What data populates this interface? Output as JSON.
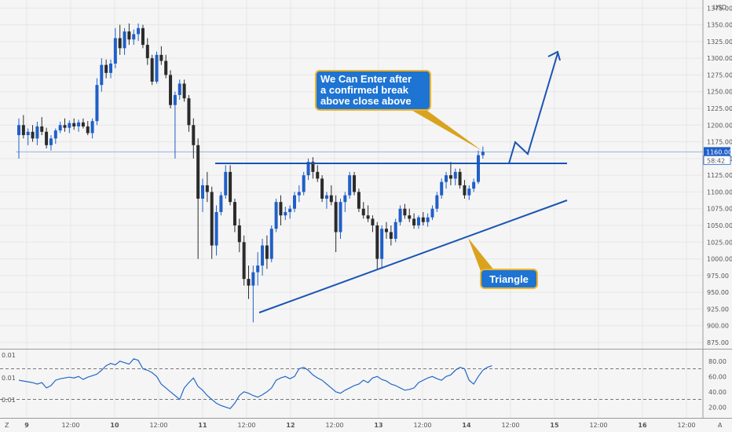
{
  "colors": {
    "background": "#f5f5f5",
    "bull": "#1f5fc8",
    "bear": "#2b2b2b",
    "drawing": "#1a55b3",
    "callout_fill": "#1e74d3",
    "callout_border": "#f0b429",
    "rsi_line": "#2468c8",
    "price_badge": "#1f5fc8"
  },
  "price_axis": {
    "currency": "USD",
    "labels": [
      "1375.00",
      "1350.00",
      "1325.00",
      "1300.00",
      "1275.00",
      "1250.00",
      "1225.00",
      "1200.00",
      "1175.00",
      "1150.00",
      "1125.00",
      "1100.00",
      "1075.00",
      "1050.00",
      "1025.00",
      "1000.00",
      "975.00",
      "950.00",
      "925.00",
      "900.00",
      "875.00"
    ],
    "last_price": "1160.00",
    "countdown": "58:42"
  },
  "time_axis": {
    "labels": [
      "9",
      "12:00",
      "10",
      "12:00",
      "11",
      "12:00",
      "12",
      "12:00",
      "13",
      "12:00",
      "14",
      "12:00",
      "15",
      "12:00",
      "16",
      "12:00"
    ],
    "corner_left": "Z",
    "corner_right": "A"
  },
  "rsi_axis": {
    "labels": [
      "80.00",
      "60.00",
      "40.00",
      "20.00"
    ],
    "left_labels": [
      "0.01",
      "0.01",
      "0.01"
    ]
  },
  "annotations": {
    "enter_note": [
      "We Can Enter after",
      "a confirmed break",
      "above close above"
    ],
    "triangle_label": "Triangle"
  },
  "chart_data": [
    {
      "type": "candlestick",
      "title": "",
      "ylim": [
        875,
        1380
      ],
      "x_range": [
        0,
        110
      ],
      "resistance_level": 1150,
      "candles": [
        {
          "o": 1185,
          "h": 1210,
          "l": 1150,
          "c": 1200
        },
        {
          "o": 1200,
          "h": 1215,
          "l": 1180,
          "c": 1185
        },
        {
          "o": 1185,
          "h": 1195,
          "l": 1170,
          "c": 1190
        },
        {
          "o": 1190,
          "h": 1200,
          "l": 1175,
          "c": 1180
        },
        {
          "o": 1180,
          "h": 1205,
          "l": 1170,
          "c": 1198
        },
        {
          "o": 1198,
          "h": 1212,
          "l": 1185,
          "c": 1190
        },
        {
          "o": 1190,
          "h": 1196,
          "l": 1165,
          "c": 1170
        },
        {
          "o": 1170,
          "h": 1185,
          "l": 1162,
          "c": 1180
        },
        {
          "o": 1180,
          "h": 1195,
          "l": 1172,
          "c": 1192
        },
        {
          "o": 1192,
          "h": 1205,
          "l": 1188,
          "c": 1200
        },
        {
          "o": 1200,
          "h": 1210,
          "l": 1190,
          "c": 1196
        },
        {
          "o": 1196,
          "h": 1207,
          "l": 1188,
          "c": 1203
        },
        {
          "o": 1203,
          "h": 1210,
          "l": 1193,
          "c": 1198
        },
        {
          "o": 1198,
          "h": 1208,
          "l": 1190,
          "c": 1204
        },
        {
          "o": 1204,
          "h": 1210,
          "l": 1195,
          "c": 1198
        },
        {
          "o": 1198,
          "h": 1206,
          "l": 1185,
          "c": 1188
        },
        {
          "o": 1188,
          "h": 1210,
          "l": 1180,
          "c": 1206
        },
        {
          "o": 1206,
          "h": 1270,
          "l": 1200,
          "c": 1260
        },
        {
          "o": 1260,
          "h": 1300,
          "l": 1250,
          "c": 1290
        },
        {
          "o": 1290,
          "h": 1298,
          "l": 1270,
          "c": 1278
        },
        {
          "o": 1278,
          "h": 1298,
          "l": 1270,
          "c": 1292
        },
        {
          "o": 1292,
          "h": 1345,
          "l": 1285,
          "c": 1330
        },
        {
          "o": 1330,
          "h": 1350,
          "l": 1305,
          "c": 1315
        },
        {
          "o": 1315,
          "h": 1345,
          "l": 1305,
          "c": 1340
        },
        {
          "o": 1340,
          "h": 1352,
          "l": 1320,
          "c": 1328
        },
        {
          "o": 1328,
          "h": 1343,
          "l": 1320,
          "c": 1336
        },
        {
          "o": 1336,
          "h": 1352,
          "l": 1326,
          "c": 1345
        },
        {
          "o": 1345,
          "h": 1350,
          "l": 1315,
          "c": 1320
        },
        {
          "o": 1320,
          "h": 1330,
          "l": 1290,
          "c": 1300
        },
        {
          "o": 1300,
          "h": 1305,
          "l": 1260,
          "c": 1265
        },
        {
          "o": 1265,
          "h": 1310,
          "l": 1262,
          "c": 1305
        },
        {
          "o": 1305,
          "h": 1318,
          "l": 1290,
          "c": 1296
        },
        {
          "o": 1296,
          "h": 1305,
          "l": 1270,
          "c": 1275
        },
        {
          "o": 1275,
          "h": 1282,
          "l": 1225,
          "c": 1230
        },
        {
          "o": 1230,
          "h": 1250,
          "l": 1150,
          "c": 1245
        },
        {
          "o": 1245,
          "h": 1268,
          "l": 1238,
          "c": 1262
        },
        {
          "o": 1262,
          "h": 1268,
          "l": 1235,
          "c": 1240
        },
        {
          "o": 1240,
          "h": 1245,
          "l": 1190,
          "c": 1200
        },
        {
          "o": 1200,
          "h": 1210,
          "l": 1150,
          "c": 1170
        },
        {
          "o": 1170,
          "h": 1180,
          "l": 1000,
          "c": 1090
        },
        {
          "o": 1090,
          "h": 1120,
          "l": 1070,
          "c": 1110
        },
        {
          "o": 1110,
          "h": 1130,
          "l": 1085,
          "c": 1100
        },
        {
          "o": 1100,
          "h": 1108,
          "l": 1000,
          "c": 1020
        },
        {
          "o": 1020,
          "h": 1080,
          "l": 1005,
          "c": 1070
        },
        {
          "o": 1070,
          "h": 1100,
          "l": 1065,
          "c": 1095
        },
        {
          "o": 1095,
          "h": 1140,
          "l": 1090,
          "c": 1130
        },
        {
          "o": 1130,
          "h": 1140,
          "l": 1080,
          "c": 1085
        },
        {
          "o": 1085,
          "h": 1090,
          "l": 1040,
          "c": 1050
        },
        {
          "o": 1050,
          "h": 1060,
          "l": 1010,
          "c": 1025
        },
        {
          "o": 1025,
          "h": 1035,
          "l": 960,
          "c": 970
        },
        {
          "o": 970,
          "h": 990,
          "l": 940,
          "c": 960
        },
        {
          "o": 960,
          "h": 990,
          "l": 905,
          "c": 980
        },
        {
          "o": 980,
          "h": 1010,
          "l": 960,
          "c": 990
        },
        {
          "o": 990,
          "h": 1030,
          "l": 975,
          "c": 1020
        },
        {
          "o": 1020,
          "h": 1035,
          "l": 985,
          "c": 1000
        },
        {
          "o": 1000,
          "h": 1050,
          "l": 995,
          "c": 1045
        },
        {
          "o": 1045,
          "h": 1090,
          "l": 1040,
          "c": 1085
        },
        {
          "o": 1085,
          "h": 1095,
          "l": 1050,
          "c": 1065
        },
        {
          "o": 1065,
          "h": 1078,
          "l": 1058,
          "c": 1070
        },
        {
          "o": 1070,
          "h": 1080,
          "l": 1060,
          "c": 1075
        },
        {
          "o": 1075,
          "h": 1100,
          "l": 1070,
          "c": 1095
        },
        {
          "o": 1095,
          "h": 1110,
          "l": 1085,
          "c": 1100
        },
        {
          "o": 1100,
          "h": 1130,
          "l": 1095,
          "c": 1125
        },
        {
          "o": 1125,
          "h": 1150,
          "l": 1118,
          "c": 1145
        },
        {
          "o": 1145,
          "h": 1152,
          "l": 1120,
          "c": 1130
        },
        {
          "o": 1130,
          "h": 1140,
          "l": 1115,
          "c": 1120
        },
        {
          "o": 1120,
          "h": 1125,
          "l": 1085,
          "c": 1090
        },
        {
          "o": 1090,
          "h": 1100,
          "l": 1075,
          "c": 1095
        },
        {
          "o": 1095,
          "h": 1110,
          "l": 1080,
          "c": 1085
        },
        {
          "o": 1085,
          "h": 1095,
          "l": 1010,
          "c": 1040
        },
        {
          "o": 1040,
          "h": 1090,
          "l": 1030,
          "c": 1085
        },
        {
          "o": 1085,
          "h": 1100,
          "l": 1070,
          "c": 1095
        },
        {
          "o": 1095,
          "h": 1130,
          "l": 1090,
          "c": 1125
        },
        {
          "o": 1125,
          "h": 1130,
          "l": 1095,
          "c": 1100
        },
        {
          "o": 1100,
          "h": 1105,
          "l": 1070,
          "c": 1075
        },
        {
          "o": 1075,
          "h": 1085,
          "l": 1060,
          "c": 1065
        },
        {
          "o": 1065,
          "h": 1080,
          "l": 1055,
          "c": 1060
        },
        {
          "o": 1060,
          "h": 1065,
          "l": 1040,
          "c": 1050
        },
        {
          "o": 1050,
          "h": 1055,
          "l": 985,
          "c": 1000
        },
        {
          "o": 1000,
          "h": 1050,
          "l": 985,
          "c": 1045
        },
        {
          "o": 1045,
          "h": 1055,
          "l": 1030,
          "c": 1040
        },
        {
          "o": 1040,
          "h": 1050,
          "l": 1020,
          "c": 1030
        },
        {
          "o": 1030,
          "h": 1060,
          "l": 1025,
          "c": 1055
        },
        {
          "o": 1055,
          "h": 1080,
          "l": 1050,
          "c": 1075
        },
        {
          "o": 1075,
          "h": 1082,
          "l": 1060,
          "c": 1065
        },
        {
          "o": 1065,
          "h": 1075,
          "l": 1055,
          "c": 1060
        },
        {
          "o": 1060,
          "h": 1068,
          "l": 1045,
          "c": 1050
        },
        {
          "o": 1050,
          "h": 1065,
          "l": 1045,
          "c": 1062
        },
        {
          "o": 1062,
          "h": 1070,
          "l": 1050,
          "c": 1055
        },
        {
          "o": 1055,
          "h": 1068,
          "l": 1048,
          "c": 1062
        },
        {
          "o": 1062,
          "h": 1080,
          "l": 1058,
          "c": 1075
        },
        {
          "o": 1075,
          "h": 1100,
          "l": 1070,
          "c": 1095
        },
        {
          "o": 1095,
          "h": 1120,
          "l": 1090,
          "c": 1115
        },
        {
          "o": 1115,
          "h": 1130,
          "l": 1105,
          "c": 1125
        },
        {
          "o": 1125,
          "h": 1145,
          "l": 1110,
          "c": 1120
        },
        {
          "o": 1120,
          "h": 1135,
          "l": 1110,
          "c": 1130
        },
        {
          "o": 1130,
          "h": 1135,
          "l": 1105,
          "c": 1110
        },
        {
          "o": 1110,
          "h": 1118,
          "l": 1090,
          "c": 1095
        },
        {
          "o": 1095,
          "h": 1110,
          "l": 1088,
          "c": 1105
        },
        {
          "o": 1105,
          "h": 1120,
          "l": 1100,
          "c": 1115
        },
        {
          "o": 1115,
          "h": 1162,
          "l": 1112,
          "c": 1155
        },
        {
          "o": 1155,
          "h": 1168,
          "l": 1150,
          "c": 1160
        }
      ]
    },
    {
      "type": "line",
      "title": "",
      "ylim": [
        10,
        90
      ],
      "reference_lines": [
        70,
        30
      ],
      "series": [
        {
          "values": [
            55,
            54,
            53,
            52,
            50,
            52,
            45,
            48,
            55,
            57,
            58,
            59,
            58,
            60,
            56,
            59,
            61,
            63,
            68,
            74,
            77,
            75,
            80,
            78,
            76,
            83,
            81,
            70,
            68,
            65,
            60,
            50,
            45,
            40,
            35,
            30,
            45,
            52,
            58,
            47,
            42,
            35,
            30,
            25,
            22,
            20,
            18,
            25,
            35,
            40,
            38,
            35,
            33,
            36,
            40,
            45,
            55,
            58,
            60,
            57,
            60,
            70,
            72,
            68,
            62,
            58,
            55,
            50,
            45,
            40,
            38,
            42,
            45,
            48,
            50,
            55,
            52,
            58,
            60,
            56,
            54,
            50,
            48,
            45,
            42,
            43,
            45,
            52,
            55,
            58,
            60,
            57,
            55,
            60,
            62,
            68,
            72,
            70,
            55,
            50,
            60,
            68,
            72,
            74
          ]
        }
      ]
    }
  ]
}
